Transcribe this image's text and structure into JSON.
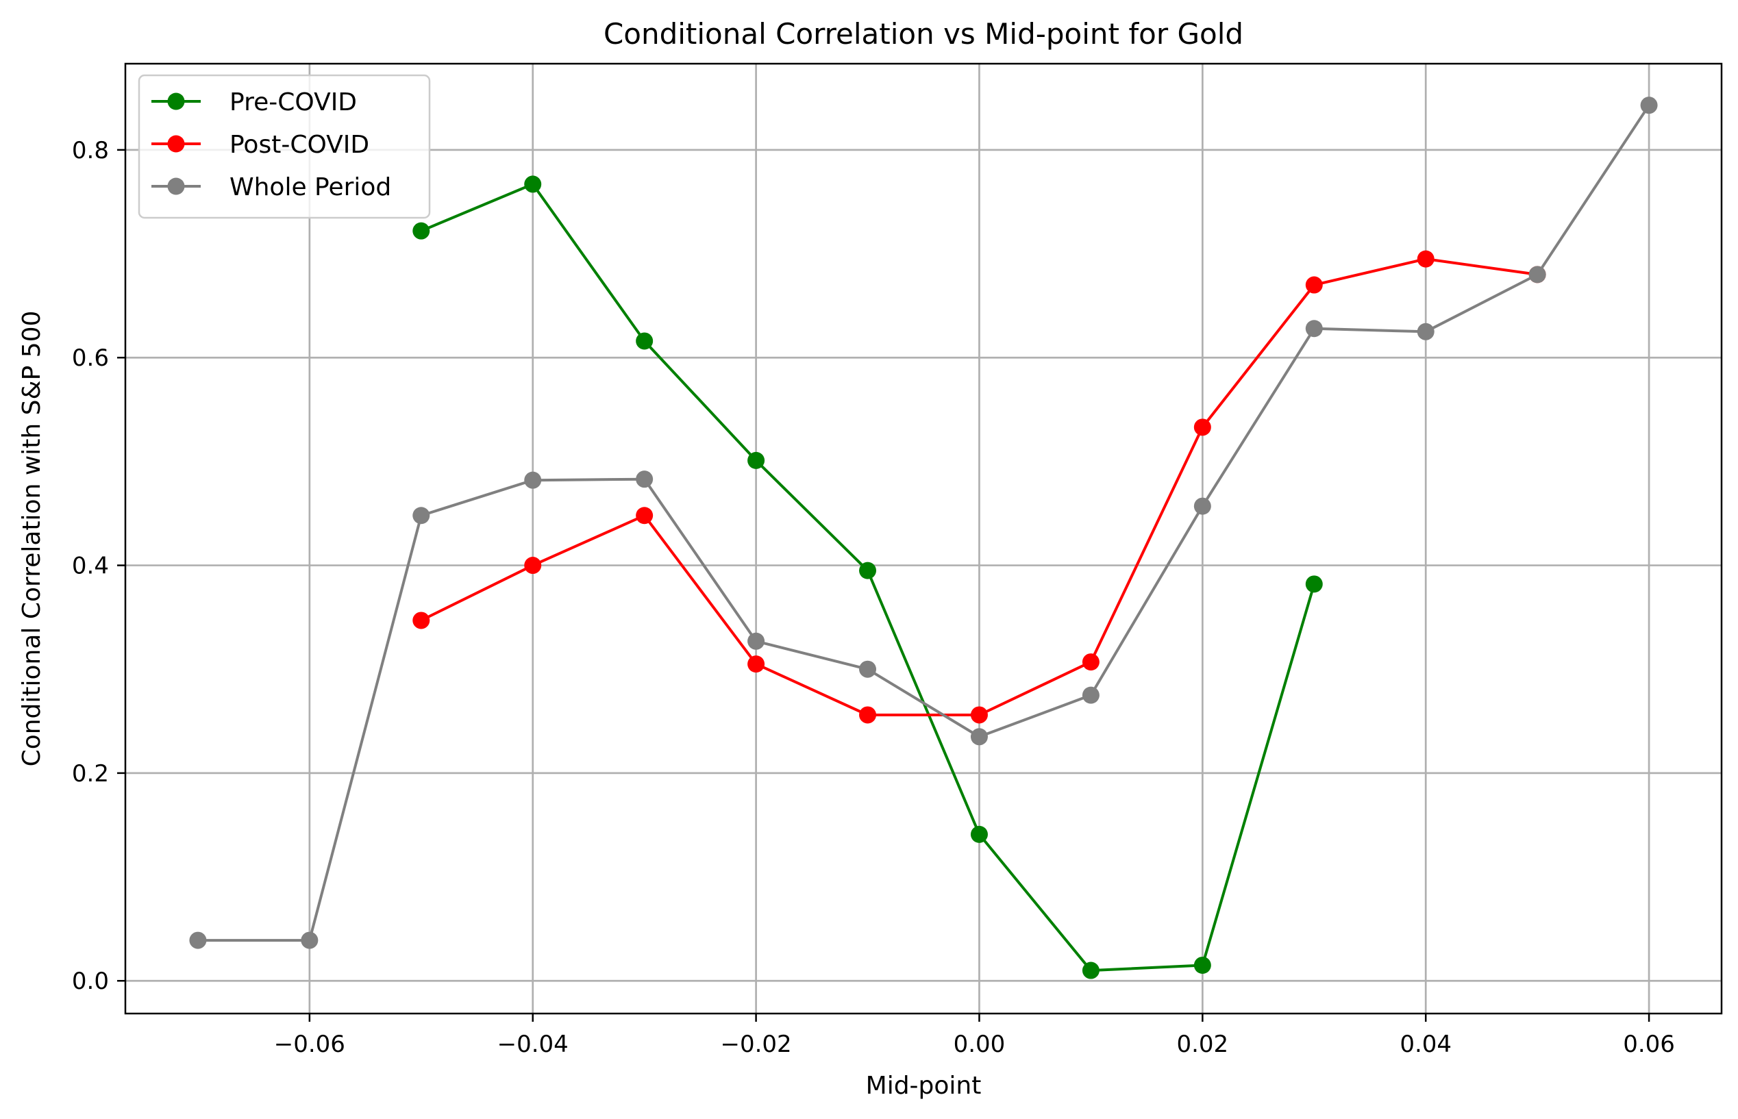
{
  "chart_data": {
    "type": "line",
    "title": "Conditional Correlation vs Mid-point for Gold",
    "xlabel": "Mid-point",
    "ylabel": "Conditional Correlation with S&P 500",
    "xlim": [
      -0.0765,
      0.0665
    ],
    "ylim": [
      -0.0315,
      0.883
    ],
    "x_ticks": [
      -0.06,
      -0.04,
      -0.02,
      0.0,
      0.02,
      0.04,
      0.06
    ],
    "x_tick_labels": [
      "−0.06",
      "−0.04",
      "−0.02",
      "0.00",
      "0.02",
      "0.04",
      "0.06"
    ],
    "y_ticks": [
      0.0,
      0.2,
      0.4,
      0.6,
      0.8
    ],
    "y_tick_labels": [
      "0.0",
      "0.2",
      "0.4",
      "0.6",
      "0.8"
    ],
    "grid": true,
    "legend_position": "top-left",
    "series": [
      {
        "name": "Pre-COVID",
        "color": "#008000",
        "marker": "circle",
        "x": [
          -0.05,
          -0.04,
          -0.03,
          -0.02,
          -0.01,
          0.0,
          0.01,
          0.02,
          0.03
        ],
        "y": [
          0.722,
          0.767,
          0.616,
          0.501,
          0.395,
          0.141,
          0.01,
          0.015,
          0.382
        ]
      },
      {
        "name": "Post-COVID",
        "color": "#ff0000",
        "marker": "circle",
        "x": [
          -0.05,
          -0.04,
          -0.03,
          -0.02,
          -0.01,
          0.0,
          0.01,
          0.02,
          0.03,
          0.04,
          0.05
        ],
        "y": [
          0.347,
          0.4,
          0.448,
          0.305,
          0.256,
          0.256,
          0.307,
          0.533,
          0.67,
          0.695,
          0.68
        ]
      },
      {
        "name": "Whole Period",
        "color": "#808080",
        "marker": "circle",
        "x": [
          -0.07,
          -0.06,
          -0.05,
          -0.04,
          -0.03,
          -0.02,
          -0.01,
          0.0,
          0.01,
          0.02,
          0.03,
          0.04,
          0.05,
          0.06
        ],
        "y": [
          0.039,
          0.039,
          0.448,
          0.482,
          0.483,
          0.327,
          0.3,
          0.235,
          0.275,
          0.457,
          0.628,
          0.625,
          0.68,
          0.843
        ]
      }
    ]
  }
}
